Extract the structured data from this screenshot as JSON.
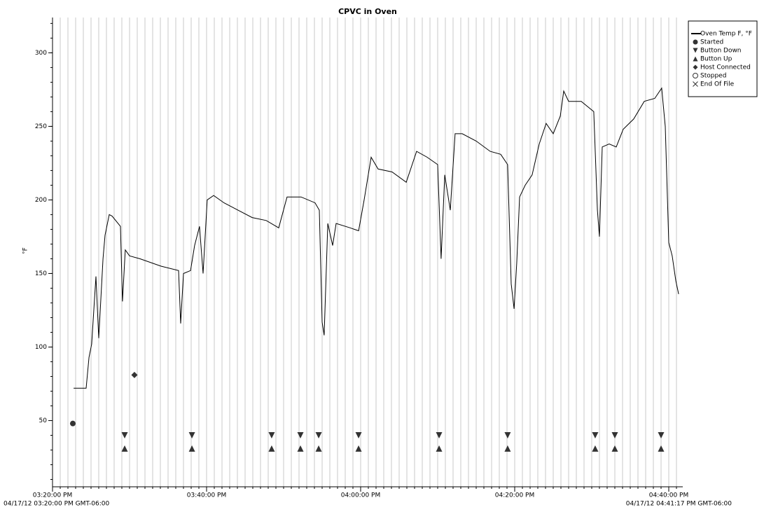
{
  "chart_data": {
    "type": "line",
    "title": "CPVC in Oven",
    "ylabel": "°F",
    "footer_left": "04/17/12 03:20:00 PM GMT-06:00",
    "footer_right": "04/17/12 04:41:17 PM GMT-06:00",
    "xlim": [
      "03:20:00 PM",
      "04:41:49 PM"
    ],
    "xticks": [
      "03:20:00 PM",
      "03:40:00 PM",
      "04:00:00 PM",
      "04:20:00 PM",
      "04:40:00 PM"
    ],
    "ylim": [
      5,
      324
    ],
    "yticks": [
      50,
      100,
      150,
      200,
      250,
      300
    ],
    "minor_grid": true,
    "legend": "top-right",
    "series": [
      {
        "name": "Oven Temp F, °F",
        "marker": "line",
        "color": "#000000",
        "x": [
          "03:22:44 PM",
          "03:24:22 PM",
          "03:24:44 PM",
          "03:25:05 PM",
          "03:25:38 PM",
          "03:26:00 PM",
          "03:26:33 PM",
          "03:26:49 PM",
          "03:27:22 PM",
          "03:27:44 PM",
          "03:28:49 PM",
          "03:29:05 PM",
          "03:29:27 PM",
          "03:30:00 PM",
          "03:31:22 PM",
          "03:34:05 PM",
          "03:36:22 PM",
          "03:36:38 PM",
          "03:37:00 PM",
          "03:37:55 PM",
          "03:38:27 PM",
          "03:39:05 PM",
          "03:39:33 PM",
          "03:40:05 PM",
          "03:40:55 PM",
          "03:42:16 PM",
          "03:44:05 PM",
          "03:45:55 PM",
          "03:47:44 PM",
          "03:49:22 PM",
          "03:50:27 PM",
          "03:52:16 PM",
          "03:54:05 PM",
          "03:54:38 PM",
          "03:55:00 PM",
          "03:55:16 PM",
          "03:55:44 PM",
          "03:56:22 PM",
          "03:56:49 PM",
          "03:58:38 PM",
          "03:59:44 PM",
          "04:00:27 PM",
          "04:01:22 PM",
          "04:02:16 PM",
          "04:04:05 PM",
          "04:05:55 PM",
          "04:07:16 PM",
          "04:08:38 PM",
          "04:10:00 PM",
          "04:10:27 PM",
          "04:10:55 PM",
          "04:11:38 PM",
          "04:12:16 PM",
          "04:13:11 PM",
          "04:15:00 PM",
          "04:16:49 PM",
          "04:18:11 PM",
          "04:19:05 PM",
          "04:19:33 PM",
          "04:19:55 PM",
          "04:20:16 PM",
          "04:20:38 PM",
          "04:21:22 PM",
          "04:22:16 PM",
          "04:23:11 PM",
          "04:24:05 PM",
          "04:25:00 PM",
          "04:25:55 PM",
          "04:26:22 PM",
          "04:27:00 PM",
          "04:28:38 PM",
          "04:30:16 PM",
          "04:30:44 PM",
          "04:31:00 PM",
          "04:31:22 PM",
          "04:32:16 PM",
          "04:33:11 PM",
          "04:34:05 PM",
          "04:35:27 PM",
          "04:36:49 PM",
          "04:38:11 PM",
          "04:39:05 PM",
          "04:39:33 PM",
          "04:40:00 PM",
          "04:40:27 PM",
          "04:40:55 PM",
          "04:41:17 PM"
        ],
        "values": [
          72,
          72,
          93,
          102,
          148,
          106,
          160,
          176,
          190,
          189,
          182,
          131,
          166,
          162,
          160,
          155,
          152,
          116,
          150,
          152,
          169,
          182,
          150,
          200,
          203,
          198,
          193,
          188,
          186,
          181,
          202,
          202,
          198,
          193,
          117,
          108,
          184,
          169,
          184,
          181,
          179,
          200,
          229,
          221,
          219,
          212,
          233,
          229,
          224,
          160,
          217,
          193,
          245,
          245,
          240,
          233,
          231,
          224,
          143,
          126,
          157,
          202,
          210,
          217,
          238,
          252,
          245,
          257,
          274,
          267,
          267,
          260,
          193,
          175,
          236,
          238,
          236,
          248,
          255,
          267,
          269,
          276,
          250,
          171,
          162,
          145,
          136
        ]
      },
      {
        "name": "Started",
        "marker": "circle",
        "color": "#333333",
        "x": [
          "03:22:38 PM"
        ],
        "values": [
          48
        ]
      },
      {
        "name": "Button Down",
        "marker": "triangle-down",
        "color": "#333333",
        "x": [
          "03:29:22 PM",
          "03:38:06 PM",
          "03:48:27 PM",
          "03:52:11 PM",
          "03:54:33 PM",
          "03:59:44 PM",
          "04:10:11 PM",
          "04:19:05 PM",
          "04:30:27 PM",
          "04:33:00 PM",
          "04:39:00 PM"
        ],
        "values": [
          40,
          40,
          40,
          40,
          40,
          40,
          40,
          40,
          40,
          40,
          40
        ]
      },
      {
        "name": "Button Up",
        "marker": "triangle-up",
        "color": "#333333",
        "x": [
          "03:29:22 PM",
          "03:38:06 PM",
          "03:48:27 PM",
          "03:52:11 PM",
          "03:54:33 PM",
          "03:59:44 PM",
          "04:10:11 PM",
          "04:19:05 PM",
          "04:30:27 PM",
          "04:33:00 PM",
          "04:39:00 PM"
        ],
        "values": [
          31,
          31,
          31,
          31,
          31,
          31,
          31,
          31,
          31,
          31,
          31
        ]
      },
      {
        "name": "Host Connected",
        "marker": "diamond",
        "color": "#333333",
        "x": [
          "03:30:38 PM"
        ],
        "values": [
          81
        ]
      },
      {
        "name": "Stopped",
        "marker": "open-circle",
        "color": "#333333",
        "x": [],
        "values": []
      },
      {
        "name": "End Of File",
        "marker": "cross",
        "color": "#333333",
        "x": [],
        "values": []
      }
    ]
  }
}
